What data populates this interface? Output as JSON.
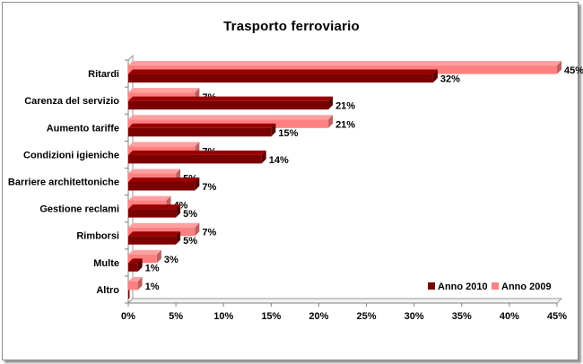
{
  "chart_data": {
    "type": "bar",
    "orientation": "horizontal",
    "title": "Trasporto ferroviario",
    "categories": [
      "Ritardi",
      "Carenza del servizio",
      "Aumento tariffe",
      "Condizioni igieniche",
      "Barriere architettoniche",
      "Gestione reclami",
      "Rimborsi",
      "Multe",
      "Altro"
    ],
    "series": [
      {
        "name": "Anno 2010",
        "color": "#7b0000",
        "values": [
          32,
          21,
          15,
          14,
          7,
          5,
          5,
          1,
          0
        ],
        "labels": [
          "32%",
          "21%",
          "15%",
          "14%",
          "7%",
          "5%",
          "5%",
          "1%",
          ""
        ]
      },
      {
        "name": "Anno 2009",
        "color": "#ff8080",
        "values": [
          45,
          7,
          21,
          7,
          5,
          4,
          7,
          3,
          1
        ],
        "labels": [
          "45%",
          "7%",
          "21%",
          "7%",
          "5%",
          "4%",
          "7%",
          "3%",
          "1%"
        ]
      }
    ],
    "xlim": [
      0,
      45
    ],
    "x_ticks": [
      "0%",
      "5%",
      "10%",
      "15%",
      "20%",
      "25%",
      "30%",
      "35%",
      "40%",
      "45%"
    ],
    "grid": false,
    "legend_position": "bottom-right"
  }
}
